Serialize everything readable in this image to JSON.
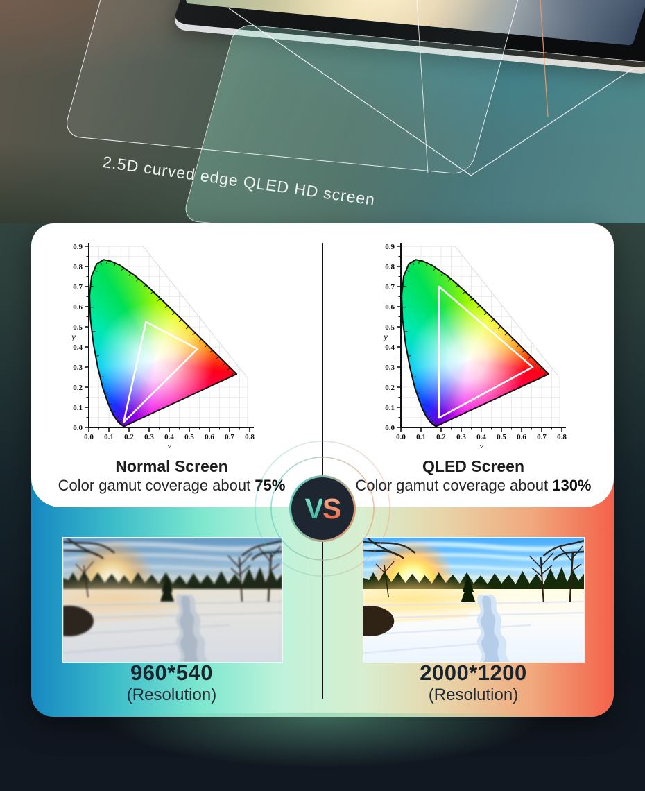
{
  "hero": {
    "caption": "2.5D curved edge QLED HD screen"
  },
  "comparison": {
    "vs_letters": [
      "V",
      "S"
    ],
    "left": {
      "title": "Normal Screen",
      "coverage_prefix": "Color gamut coverage about ",
      "coverage_value": "75%",
      "resolution": "960*540",
      "resolution_label": "(Resolution)"
    },
    "right": {
      "title": "QLED Screen",
      "coverage_prefix": "Color gamut coverage about ",
      "coverage_value": "130%",
      "resolution": "2000*1200",
      "resolution_label": "(Resolution)"
    }
  },
  "chart_data": [
    {
      "type": "scatter",
      "title": "CIE 1931 chromaticity diagram - Normal Screen gamut triangle",
      "xlabel": "x",
      "ylabel": "y",
      "xlim": [
        0,
        0.8
      ],
      "ylim": [
        0,
        0.9
      ],
      "x_ticks": [
        "0.0",
        "0.1",
        "0.2",
        "0.3",
        "0.4",
        "0.5",
        "0.6",
        "0.7",
        "0.8"
      ],
      "y_ticks": [
        "0.0",
        "0.1",
        "0.2",
        "0.3",
        "0.4",
        "0.5",
        "0.6",
        "0.7",
        "0.8",
        "0.9"
      ],
      "grid": true,
      "legend": false,
      "gamut_triangle": [
        [
          0.285,
          0.525
        ],
        [
          0.54,
          0.39
        ],
        [
          0.173,
          0.025
        ]
      ],
      "spectral_locus": [
        [
          0.1741,
          0.005
        ],
        [
          0.1566,
          0.0177
        ],
        [
          0.144,
          0.0297
        ],
        [
          0.1241,
          0.0578
        ],
        [
          0.1096,
          0.0868
        ],
        [
          0.0913,
          0.1327
        ],
        [
          0.0687,
          0.2007
        ],
        [
          0.0454,
          0.295
        ],
        [
          0.0235,
          0.4127
        ],
        [
          0.0082,
          0.5384
        ],
        [
          0.0039,
          0.6548
        ],
        [
          0.0139,
          0.7502
        ],
        [
          0.0389,
          0.812
        ],
        [
          0.0743,
          0.8338
        ],
        [
          0.1096,
          0.8262
        ],
        [
          0.1547,
          0.8059
        ],
        [
          0.1902,
          0.7816
        ],
        [
          0.2296,
          0.7543
        ],
        [
          0.2658,
          0.7243
        ],
        [
          0.3016,
          0.6923
        ],
        [
          0.3373,
          0.6589
        ],
        [
          0.3731,
          0.6245
        ],
        [
          0.4087,
          0.5896
        ],
        [
          0.4441,
          0.5547
        ],
        [
          0.4788,
          0.5202
        ],
        [
          0.5125,
          0.4866
        ],
        [
          0.5448,
          0.4544
        ],
        [
          0.5752,
          0.4242
        ],
        [
          0.6029,
          0.3965
        ],
        [
          0.627,
          0.3725
        ],
        [
          0.6658,
          0.334
        ],
        [
          0.6915,
          0.3083
        ],
        [
          0.714,
          0.2859
        ],
        [
          0.7347,
          0.2653
        ]
      ]
    },
    {
      "type": "scatter",
      "title": "CIE 1931 chromaticity diagram - QLED Screen gamut triangle",
      "xlabel": "x",
      "ylabel": "y",
      "xlim": [
        0,
        0.8
      ],
      "ylim": [
        0,
        0.9
      ],
      "x_ticks": [
        "0.0",
        "0.1",
        "0.2",
        "0.3",
        "0.4",
        "0.5",
        "0.6",
        "0.7",
        "0.8"
      ],
      "y_ticks": [
        "0.0",
        "0.1",
        "0.2",
        "0.3",
        "0.4",
        "0.5",
        "0.6",
        "0.7",
        "0.8",
        "0.9"
      ],
      "grid": true,
      "legend": false,
      "gamut_triangle": [
        [
          0.19,
          0.7
        ],
        [
          0.655,
          0.3
        ],
        [
          0.19,
          0.048
        ]
      ],
      "spectral_locus": [
        [
          0.1741,
          0.005
        ],
        [
          0.1566,
          0.0177
        ],
        [
          0.144,
          0.0297
        ],
        [
          0.1241,
          0.0578
        ],
        [
          0.1096,
          0.0868
        ],
        [
          0.0913,
          0.1327
        ],
        [
          0.0687,
          0.2007
        ],
        [
          0.0454,
          0.295
        ],
        [
          0.0235,
          0.4127
        ],
        [
          0.0082,
          0.5384
        ],
        [
          0.0039,
          0.6548
        ],
        [
          0.0139,
          0.7502
        ],
        [
          0.0389,
          0.812
        ],
        [
          0.0743,
          0.8338
        ],
        [
          0.1096,
          0.8262
        ],
        [
          0.1547,
          0.8059
        ],
        [
          0.1902,
          0.7816
        ],
        [
          0.2296,
          0.7543
        ],
        [
          0.2658,
          0.7243
        ],
        [
          0.3016,
          0.6923
        ],
        [
          0.3373,
          0.6589
        ],
        [
          0.3731,
          0.6245
        ],
        [
          0.4087,
          0.5896
        ],
        [
          0.4441,
          0.5547
        ],
        [
          0.4788,
          0.5202
        ],
        [
          0.5125,
          0.4866
        ],
        [
          0.5448,
          0.4544
        ],
        [
          0.5752,
          0.4242
        ],
        [
          0.6029,
          0.3965
        ],
        [
          0.627,
          0.3725
        ],
        [
          0.6658,
          0.334
        ],
        [
          0.6915,
          0.3083
        ],
        [
          0.714,
          0.2859
        ],
        [
          0.7347,
          0.2653
        ]
      ]
    }
  ],
  "colors": {
    "panel_gradient": [
      "#1587c1",
      "#3cbcca",
      "#7de7cf",
      "#c0f2da",
      "#d8eecf",
      "#e8d4a8",
      "#f0a87c",
      "#f4614a"
    ],
    "vs_teal": "#4ed4bc",
    "vs_orange": "#ef8568",
    "vs_circle_bg": "#1d2631",
    "divider": "#101010"
  }
}
